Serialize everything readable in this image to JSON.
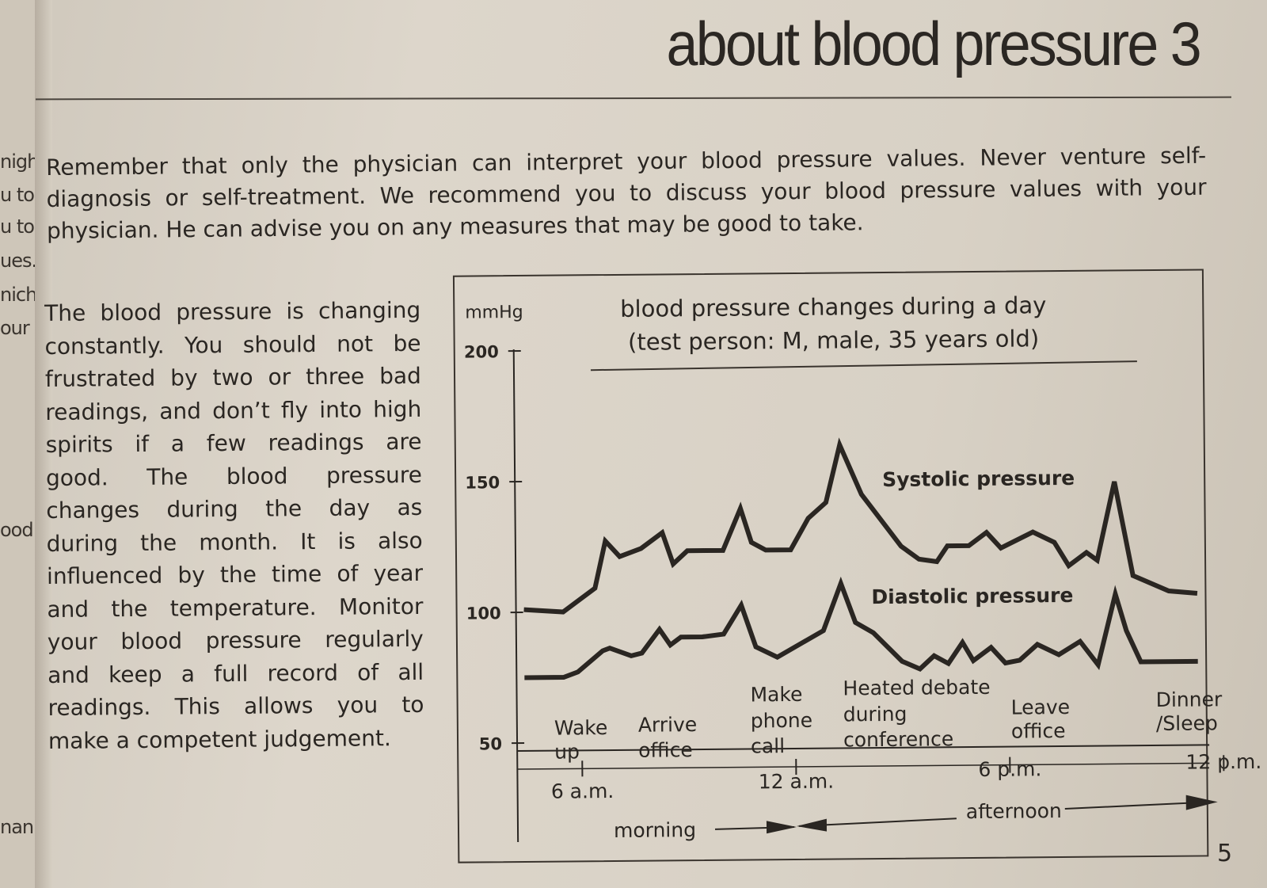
{
  "previous_page_fragments": [
    "nigh",
    "u to",
    "u to",
    "ues.",
    "nich",
    "our",
    "ood",
    "nan"
  ],
  "header": {
    "title": "about blood pressure  3"
  },
  "intro_paragraph": [
    "Remember that only the physician can interpret your blood pressure values. Never venture self-",
    "diagnosis or self-treatment. We recommend you to discuss your blood pressure values with your",
    "physician. He can advise you on any measures that may be good to take."
  ],
  "body_paragraph": [
    "The blood pressure is changing",
    "constantly. You should not be",
    "frustrated by two or three bad",
    "readings, and don’t fly into high",
    "spirits if a few readings are",
    "good. The blood pressure",
    "changes during the day as",
    "during the month. It is also",
    "influenced by the time of year",
    "and the temperature. Monitor",
    "your blood pressure regularly",
    "and keep a full record of all",
    "readings. This allows you to",
    "make a competent judgement."
  ],
  "page_number": "5",
  "chart_data": {
    "type": "line",
    "title": [
      "blood pressure changes during a day",
      "(test person: M, male, 35 years old)"
    ],
    "ylabel": "mmHg",
    "ylim": [
      50,
      200
    ],
    "yticks": [
      "50",
      "100",
      "150",
      "200"
    ],
    "xlabel_unit": "hour of day",
    "xticks": [
      {
        "hour": 6,
        "label": "6 a.m."
      },
      {
        "hour": 12,
        "label": "12 a.m."
      },
      {
        "hour": 18,
        "label": "6 p.m."
      },
      {
        "hour": 24,
        "label": "12 p.m."
      }
    ],
    "periods": [
      {
        "label": "morning"
      },
      {
        "label": "afternoon"
      }
    ],
    "events": [
      "Wake up",
      "Arrive office",
      "Make phone call",
      "Heated debate during conference",
      "Leave office",
      "Dinner /Sleep"
    ],
    "series": [
      {
        "name": "Systolic pressure",
        "x": [
          4.4,
          5.5,
          6.4,
          6.7,
          7.1,
          7.7,
          8.3,
          8.6,
          9.0,
          9.5,
          10.0,
          10.5,
          10.8,
          11.2,
          11.9,
          12.4,
          12.9,
          13.3,
          13.9,
          15.0,
          15.5,
          16.0,
          16.3,
          16.9,
          17.4,
          17.8,
          18.7,
          19.3,
          19.7,
          20.2,
          20.5,
          21.0,
          21.5,
          22.5,
          23.3
        ],
        "y": [
          101,
          100,
          109,
          127,
          121,
          124,
          130,
          118,
          123,
          123,
          123,
          139,
          126,
          123,
          123,
          135,
          141,
          163,
          144,
          124,
          119,
          118,
          124,
          124,
          129,
          123,
          129,
          125,
          116,
          121,
          118,
          148,
          112,
          106,
          105
        ]
      },
      {
        "name": "Diastolic pressure",
        "x": [
          4.4,
          5.5,
          5.9,
          6.6,
          6.8,
          7.4,
          7.7,
          8.2,
          8.5,
          8.8,
          9.4,
          10.0,
          10.5,
          10.9,
          11.5,
          12.8,
          13.3,
          13.7,
          14.2,
          15.0,
          15.5,
          15.9,
          16.3,
          16.7,
          17.0,
          17.5,
          17.9,
          18.3,
          18.8,
          19.4,
          20.0,
          20.5,
          21.0,
          21.3,
          21.7,
          23.3
        ],
        "y": [
          75,
          75,
          77,
          85,
          86,
          83,
          84,
          93,
          87,
          90,
          90,
          91,
          102,
          86,
          82,
          92,
          110,
          95,
          91,
          80,
          77,
          82,
          79,
          87,
          80,
          85,
          79,
          80,
          86,
          82,
          87,
          78,
          105,
          91,
          79,
          79
        ]
      }
    ]
  }
}
